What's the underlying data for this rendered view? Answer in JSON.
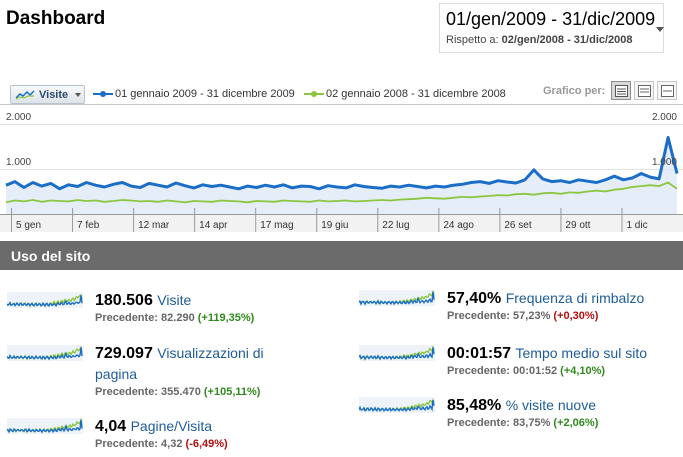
{
  "header": {
    "title": "Dashboard",
    "date_range": "01/gen/2009 - 31/dic/2009",
    "compare_label": "Rispetto a:",
    "compare_range": "02/gen/2008 - 31/dic/2008"
  },
  "chart_controls": {
    "metric_selector": "Visite",
    "grafico_label": "Grafico per:",
    "views": [
      "daily-view",
      "weekly-view",
      "monthly-view"
    ]
  },
  "chart_data": {
    "type": "line",
    "title": "",
    "xlabel": "",
    "ylabel": "",
    "ylim": [
      0,
      2000
    ],
    "y_ticks_left": [
      "2.000",
      "1.000"
    ],
    "y_ticks_right": [
      "2.000",
      "1.000"
    ],
    "x_tick_labels": [
      "5 gen",
      "7 feb",
      "12 mar",
      "14 apr",
      "17 mag",
      "19 giu",
      "22 lug",
      "24 ago",
      "26 set",
      "29 ott",
      "1 dic"
    ],
    "series": [
      {
        "name": "01 gennaio 2009 - 31 dicembre 2009",
        "color": "#1a6ec8",
        "values": [
          640,
          720,
          590,
          700,
          620,
          680,
          560,
          650,
          610,
          700,
          640,
          600,
          660,
          700,
          620,
          590,
          680,
          640,
          600,
          690,
          630,
          580,
          650,
          610,
          640,
          600,
          560,
          620,
          590,
          640,
          600,
          650,
          580,
          620,
          610,
          560,
          630,
          600,
          580,
          650,
          610,
          590,
          570,
          620,
          600,
          640,
          610,
          580,
          620,
          600,
          640,
          660,
          700,
          720,
          680,
          740,
          710,
          690,
          760,
          980,
          780,
          720,
          740,
          700,
          760,
          730,
          700,
          760,
          840,
          760,
          800,
          900,
          820,
          780,
          1700,
          900
        ]
      },
      {
        "name": "02 gennaio 2008 - 31 dicembre 2008",
        "color": "#8cc63f",
        "values": [
          260,
          300,
          280,
          310,
          270,
          300,
          290,
          280,
          310,
          290,
          300,
          270,
          290,
          310,
          300,
          280,
          290,
          270,
          300,
          280,
          260,
          290,
          280,
          270,
          300,
          290,
          280,
          260,
          290,
          280,
          270,
          300,
          290,
          280,
          270,
          300,
          280,
          290,
          300,
          280,
          290,
          300,
          310,
          300,
          320,
          330,
          340,
          360,
          350,
          340,
          360,
          380,
          370,
          390,
          400,
          420,
          410,
          440,
          450,
          430,
          460,
          470,
          450,
          480,
          470,
          500,
          520,
          500,
          540,
          560,
          600,
          620,
          640,
          620,
          700,
          560
        ]
      }
    ]
  },
  "section": {
    "title": "Uso del sito"
  },
  "metrics": [
    {
      "value": "180.506",
      "name": "Visite",
      "prev_label": "Precedente:",
      "prev_value": "82.290",
      "change": "(+119,35%)",
      "trend": "up"
    },
    {
      "value": "729.097",
      "name": "Visualizzazioni di pagina",
      "prev_label": "Precedente:",
      "prev_value": "355.470",
      "change": "(+105,11%)",
      "trend": "up"
    },
    {
      "value": "4,04",
      "name": "Pagine/Visita",
      "prev_label": "Precedente:",
      "prev_value": "4,32",
      "change": "(-6,49%)",
      "trend": "down"
    },
    {
      "value": "57,40%",
      "name": "Frequenza di rimbalzo",
      "prev_label": "Precedente:",
      "prev_value": "57,23%",
      "change": "(+0,30%)",
      "trend": "down"
    },
    {
      "value": "00:01:57",
      "name": "Tempo medio sul sito",
      "prev_label": "Precedente:",
      "prev_value": "00:01:52",
      "change": "(+4,10%)",
      "trend": "up"
    },
    {
      "value": "85,48%",
      "name": "% visite nuove",
      "prev_label": "Precedente:",
      "prev_value": "83,75%",
      "change": "(+2,06%)",
      "trend": "up"
    }
  ]
}
